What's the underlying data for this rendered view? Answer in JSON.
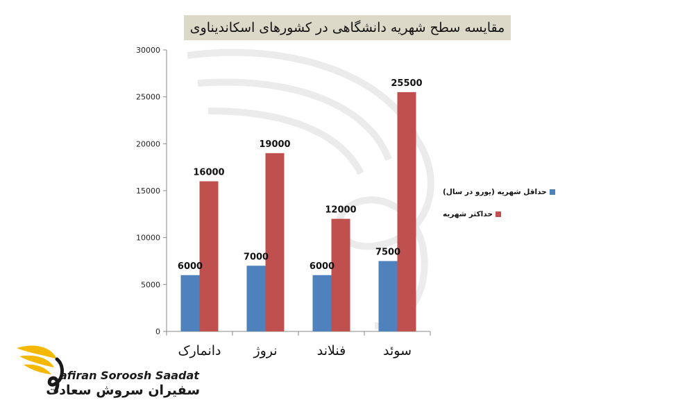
{
  "chart_data": {
    "type": "bar",
    "title": "مقایسه سطح شهریه دانشگاهی در کشورهای اسکاندیناوی",
    "categories": [
      "دانمارک",
      "نروژ",
      "فنلاند",
      "سوئد"
    ],
    "series": [
      {
        "name": "حداقل شهریه (یورو در سال)",
        "color": "#4f81bd",
        "values": [
          6000,
          7000,
          6000,
          7500
        ]
      },
      {
        "name": "حداکثر شهریه",
        "color": "#c0504d",
        "values": [
          16000,
          19000,
          12000,
          25500
        ]
      }
    ],
    "data_labels": [
      [
        "6000",
        "7000",
        "6000",
        "7500"
      ],
      [
        "16000",
        "19000",
        "12000",
        "25500"
      ]
    ],
    "yticks": [
      0,
      5000,
      10000,
      15000,
      20000,
      25000,
      30000
    ],
    "ylim": [
      0,
      30000
    ],
    "xlabel": "",
    "ylabel": "",
    "legend_position": "right",
    "grid": false
  },
  "logo": {
    "name_en": "afiran Soroosh Saadat",
    "name_fa": "سفیران سروش سعادت",
    "accent_color": "#f5b800"
  }
}
